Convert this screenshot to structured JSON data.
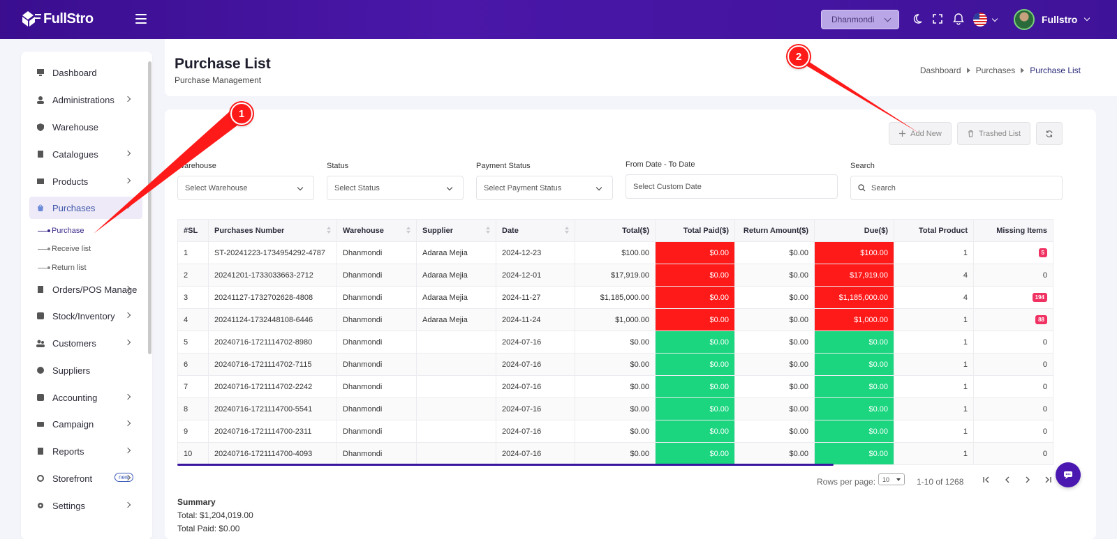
{
  "app": {
    "logo_text": "FullStro"
  },
  "topbar": {
    "warehouse": "Dhanmondi",
    "username": "Fullstro"
  },
  "sidebar": {
    "items": [
      {
        "label": "Dashboard",
        "icon": "monitor-icon"
      },
      {
        "label": "Administrations",
        "icon": "user-icon"
      },
      {
        "label": "Warehouse",
        "icon": "shield-icon"
      },
      {
        "label": "Catalogues",
        "icon": "catalogue-icon"
      },
      {
        "label": "Products",
        "icon": "box-icon"
      },
      {
        "label": "Purchases",
        "icon": "bag-icon"
      },
      {
        "label": "Orders/POS Manage",
        "icon": "clipboard-icon"
      },
      {
        "label": "Stock/Inventory",
        "icon": "stock-icon"
      },
      {
        "label": "Customers",
        "icon": "users-icon"
      },
      {
        "label": "Suppliers",
        "icon": "supplier-icon"
      },
      {
        "label": "Accounting",
        "icon": "accounting-icon"
      },
      {
        "label": "Campaign",
        "icon": "campaign-icon"
      },
      {
        "label": "Reports",
        "icon": "report-icon"
      },
      {
        "label": "Storefront",
        "icon": "store-icon",
        "badge": "new"
      },
      {
        "label": "Settings",
        "icon": "gear-icon"
      }
    ],
    "sub_items": [
      "Purchase",
      "Receive list",
      "Return list"
    ]
  },
  "header": {
    "title": "Purchase List",
    "subtitle": "Purchase Management",
    "breadcrumb": [
      "Dashboard",
      "Purchases",
      "Purchase List"
    ]
  },
  "actions": {
    "add_new": "Add New",
    "trashed_list": "Trashed List"
  },
  "filters": {
    "warehouse_label": "Warehouse",
    "warehouse_placeholder": "Select Warehouse",
    "status_label": "Status",
    "status_placeholder": "Select Status",
    "payment_label": "Payment Status",
    "payment_placeholder": "Select Payment Status",
    "date_label": "From Date - To Date",
    "date_placeholder": "Select Custom Date",
    "search_label": "Search",
    "search_placeholder": "Search"
  },
  "table": {
    "headers": [
      "#SL",
      "Purchases Number",
      "Warehouse",
      "Supplier",
      "Date",
      "Total($)",
      "Total Paid($)",
      "Return Amount($)",
      "Due($)",
      "Total Product",
      "Missing Items"
    ],
    "rows": [
      {
        "sl": "1",
        "number": "ST-20241223-1734954292-4787",
        "warehouse": "Dhanmondi",
        "supplier": "Adaraa Mejia",
        "date": "2024-12-23",
        "total": "$100.00",
        "paid": "$0.00",
        "returned": "$0.00",
        "due": "$100.00",
        "products": "1",
        "missing": "5",
        "status": "due"
      },
      {
        "sl": "2",
        "number": "20241201-1733033663-2712",
        "warehouse": "Dhanmondi",
        "supplier": "Adaraa Mejia",
        "date": "2024-12-01",
        "total": "$17,919.00",
        "paid": "$0.00",
        "returned": "$0.00",
        "due": "$17,919.00",
        "products": "4",
        "missing": "0",
        "status": "due"
      },
      {
        "sl": "3",
        "number": "20241127-1732702628-4808",
        "warehouse": "Dhanmondi",
        "supplier": "Adaraa Mejia",
        "date": "2024-11-27",
        "total": "$1,185,000.00",
        "paid": "$0.00",
        "returned": "$0.00",
        "due": "$1,185,000.00",
        "products": "4",
        "missing": "194",
        "status": "due"
      },
      {
        "sl": "4",
        "number": "20241124-1732448108-6446",
        "warehouse": "Dhanmondi",
        "supplier": "Adaraa Mejia",
        "date": "2024-11-24",
        "total": "$1,000.00",
        "paid": "$0.00",
        "returned": "$0.00",
        "due": "$1,000.00",
        "products": "1",
        "missing": "88",
        "status": "due"
      },
      {
        "sl": "5",
        "number": "20240716-1721114702-8980",
        "warehouse": "Dhanmondi",
        "supplier": "",
        "date": "2024-07-16",
        "total": "$0.00",
        "paid": "$0.00",
        "returned": "$0.00",
        "due": "$0.00",
        "products": "1",
        "missing": "0",
        "status": "paid"
      },
      {
        "sl": "6",
        "number": "20240716-1721114702-7115",
        "warehouse": "Dhanmondi",
        "supplier": "",
        "date": "2024-07-16",
        "total": "$0.00",
        "paid": "$0.00",
        "returned": "$0.00",
        "due": "$0.00",
        "products": "1",
        "missing": "0",
        "status": "paid"
      },
      {
        "sl": "7",
        "number": "20240716-1721114702-2242",
        "warehouse": "Dhanmondi",
        "supplier": "",
        "date": "2024-07-16",
        "total": "$0.00",
        "paid": "$0.00",
        "returned": "$0.00",
        "due": "$0.00",
        "products": "1",
        "missing": "0",
        "status": "paid"
      },
      {
        "sl": "8",
        "number": "20240716-1721114700-5541",
        "warehouse": "Dhanmondi",
        "supplier": "",
        "date": "2024-07-16",
        "total": "$0.00",
        "paid": "$0.00",
        "returned": "$0.00",
        "due": "$0.00",
        "products": "1",
        "missing": "0",
        "status": "paid"
      },
      {
        "sl": "9",
        "number": "20240716-1721114700-2311",
        "warehouse": "Dhanmondi",
        "supplier": "",
        "date": "2024-07-16",
        "total": "$0.00",
        "paid": "$0.00",
        "returned": "$0.00",
        "due": "$0.00",
        "products": "1",
        "missing": "0",
        "status": "paid"
      },
      {
        "sl": "10",
        "number": "20240716-1721114700-4093",
        "warehouse": "Dhanmondi",
        "supplier": "",
        "date": "2024-07-16",
        "total": "$0.00",
        "paid": "$0.00",
        "returned": "$0.00",
        "due": "$0.00",
        "products": "1",
        "missing": "0",
        "status": "paid"
      }
    ]
  },
  "pagination": {
    "rows_label": "Rows per page:",
    "rows_value": "10",
    "range": "1-10 of 1268"
  },
  "summary": {
    "title": "Summary",
    "total": "Total: $1,204,019.00",
    "paid": "Total Paid: $0.00"
  },
  "annotations": {
    "marker1": "1",
    "marker2": "2"
  },
  "colors": {
    "brand": "#3a0e8f",
    "due": "#ff1a1a",
    "paid": "#1bd67f",
    "marker": "#ff1a1a"
  }
}
